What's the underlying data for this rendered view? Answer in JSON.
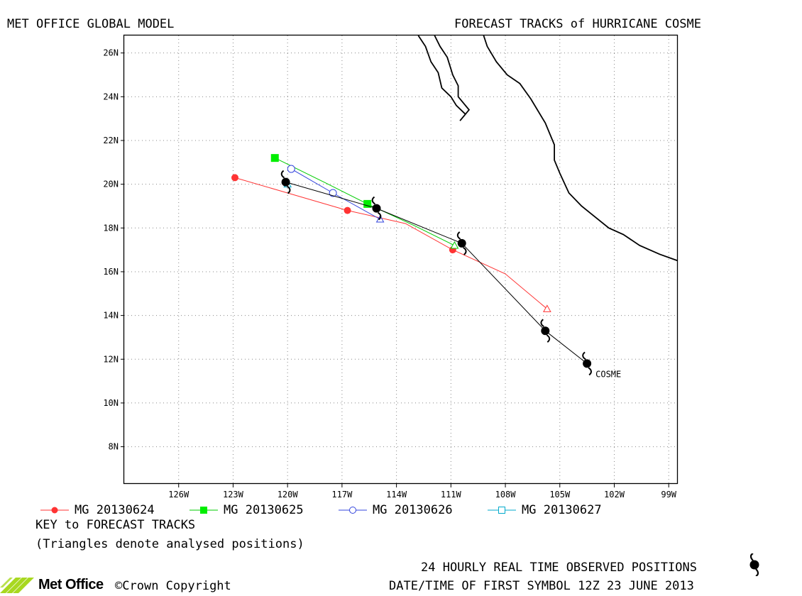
{
  "header": {
    "left_title": "MET OFFICE GLOBAL MODEL",
    "right_title": "FORECAST TRACKS of HURRICANE COSME"
  },
  "map": {
    "lon_range": [
      -129,
      -98.5
    ],
    "lat_range": [
      6.3,
      26.8
    ],
    "lon_ticks": [
      -126,
      -123,
      -120,
      -117,
      -114,
      -111,
      -108,
      -105,
      -102,
      -99
    ],
    "lon_tick_labels": [
      "126W",
      "123W",
      "120W",
      "117W",
      "114W",
      "111W",
      "108W",
      "105W",
      "102W",
      "99W"
    ],
    "lat_ticks": [
      8,
      10,
      12,
      14,
      16,
      18,
      20,
      22,
      24,
      26
    ],
    "lat_tick_labels": [
      "8N",
      "10N",
      "12N",
      "14N",
      "16N",
      "18N",
      "20N",
      "22N",
      "24N",
      "26N"
    ],
    "grid": "dotted",
    "storm_label": "COSME",
    "colors": {
      "coast": "#000000",
      "observed": "#000000"
    }
  },
  "chart_data": {
    "type": "scatter",
    "observed_track": {
      "symbol": "hurricane-icon",
      "points": [
        {
          "lon": -103.5,
          "lat": 11.8
        },
        {
          "lon": -105.8,
          "lat": 13.3
        },
        {
          "lon": -110.4,
          "lat": 17.3
        },
        {
          "lon": -115.1,
          "lat": 18.9
        },
        {
          "lon": -120.1,
          "lat": 20.1
        }
      ]
    },
    "forecast_tracks": [
      {
        "name": "MG 20130624",
        "color": "#ff3333",
        "marker": "circle-filled",
        "analysed": {
          "lon": -105.7,
          "lat": 14.3
        },
        "points": [
          {
            "lon": -105.7,
            "lat": 14.3
          },
          {
            "lon": -108.0,
            "lat": 15.9
          },
          {
            "lon": -110.9,
            "lat": 17.0
          },
          {
            "lon": -113.5,
            "lat": 18.2
          },
          {
            "lon": -116.7,
            "lat": 18.8
          },
          {
            "lon": -120.0,
            "lat": 19.6
          },
          {
            "lon": -122.9,
            "lat": 20.3
          }
        ]
      },
      {
        "name": "MG 20130625",
        "color": "#00cc00",
        "marker": "square-filled",
        "analysed": {
          "lon": -110.8,
          "lat": 17.2
        },
        "points": [
          {
            "lon": -110.8,
            "lat": 17.2
          },
          {
            "lon": -113.0,
            "lat": 18.1
          },
          {
            "lon": -115.6,
            "lat": 19.1
          },
          {
            "lon": -118.0,
            "lat": 20.1
          },
          {
            "lon": -120.7,
            "lat": 21.2
          }
        ]
      },
      {
        "name": "MG 20130626",
        "color": "#3344dd",
        "marker": "circle-open",
        "analysed": {
          "lon": -114.9,
          "lat": 18.4
        },
        "points": [
          {
            "lon": -114.9,
            "lat": 18.4
          },
          {
            "lon": -117.5,
            "lat": 19.6
          },
          {
            "lon": -119.8,
            "lat": 20.7
          }
        ]
      },
      {
        "name": "MG 20130627",
        "color": "#00aacc",
        "marker": "square-open",
        "analysed": {
          "lon": -120.0,
          "lat": 20.0
        },
        "points": [
          {
            "lon": -120.0,
            "lat": 20.0
          }
        ]
      }
    ],
    "coastline": [
      [
        [
          -112.8,
          26.8
        ],
        [
          -112.4,
          26.3
        ],
        [
          -112.1,
          25.6
        ],
        [
          -111.7,
          25.1
        ],
        [
          -111.5,
          24.4
        ],
        [
          -111.0,
          24.0
        ],
        [
          -110.7,
          23.6
        ],
        [
          -110.2,
          23.2
        ],
        [
          -110.5,
          22.9
        ],
        [
          -110.0,
          23.4
        ],
        [
          -110.6,
          24.0
        ],
        [
          -110.6,
          24.5
        ],
        [
          -110.9,
          25.0
        ],
        [
          -111.2,
          25.8
        ],
        [
          -111.6,
          26.3
        ],
        [
          -111.9,
          26.8
        ]
      ],
      [
        [
          -109.2,
          26.8
        ],
        [
          -109.0,
          26.3
        ],
        [
          -108.5,
          25.6
        ],
        [
          -107.9,
          25.0
        ],
        [
          -107.2,
          24.6
        ],
        [
          -106.6,
          23.9
        ],
        [
          -105.8,
          22.8
        ],
        [
          -105.3,
          21.8
        ],
        [
          -105.3,
          21.1
        ],
        [
          -105.0,
          20.5
        ],
        [
          -104.5,
          19.6
        ],
        [
          -103.8,
          19.0
        ],
        [
          -103.2,
          18.6
        ],
        [
          -102.3,
          18.0
        ],
        [
          -101.5,
          17.7
        ],
        [
          -100.6,
          17.2
        ],
        [
          -99.5,
          16.8
        ],
        [
          -98.5,
          16.5
        ]
      ]
    ]
  },
  "legend": {
    "title": "KEY to FORECAST TRACKS",
    "note": "(Triangles denote analysed positions)"
  },
  "footer": {
    "observed_label": "24 HOURLY REAL TIME OBSERVED POSITIONS",
    "first_symbol_label": "DATE/TIME OF FIRST SYMBOL 12Z 23 JUNE 2013",
    "brand": "Met Office",
    "copyright": "Crown Copyright",
    "colors": {
      "logo": "#a8d820"
    }
  }
}
